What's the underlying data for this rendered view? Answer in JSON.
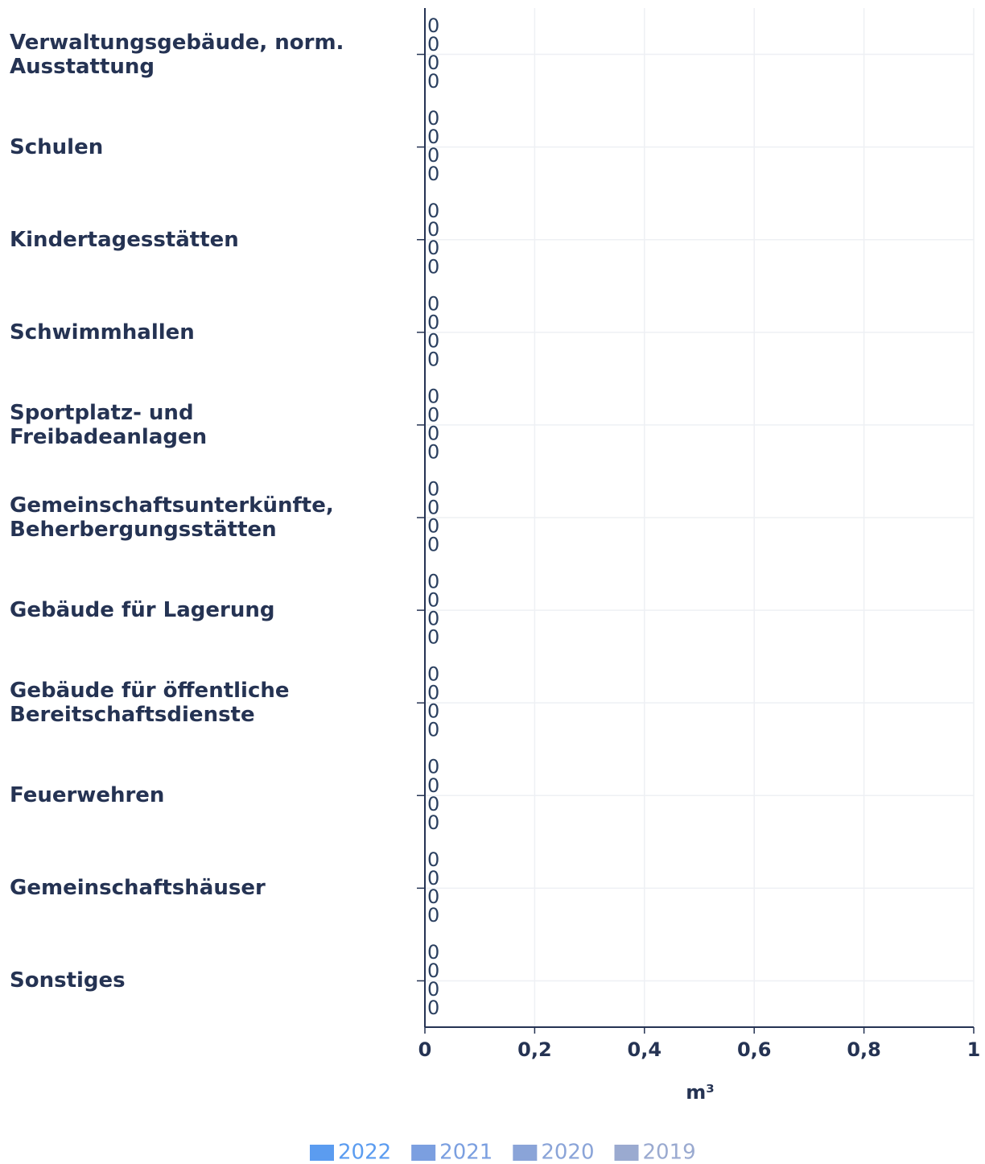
{
  "chart_data": {
    "type": "bar",
    "orientation": "horizontal",
    "x_label": "m³",
    "categories": [
      "Verwaltungsgebäude, norm. Ausstattung",
      "Schulen",
      "Kindertagesstätten",
      "Schwimmhallen",
      "Sportplatz- und Freibadeanlagen",
      "Gemeinschaftsunterkünfte, Beherbergungsstätten",
      "Gebäude für Lagerung",
      "Gebäude für öffentliche Bereitschaftsdienste",
      "Feuerwehren",
      "Gemeinschaftshäuser",
      "Sonstiges"
    ],
    "series": [
      {
        "name": "2022",
        "color": "#5b9cf0",
        "values": [
          0,
          0,
          0,
          0,
          0,
          0,
          0,
          0,
          0,
          0,
          0
        ]
      },
      {
        "name": "2021",
        "color": "#7b9fe0",
        "values": [
          0,
          0,
          0,
          0,
          0,
          0,
          0,
          0,
          0,
          0,
          0
        ]
      },
      {
        "name": "2020",
        "color": "#8aa4d8",
        "values": [
          0,
          0,
          0,
          0,
          0,
          0,
          0,
          0,
          0,
          0,
          0
        ]
      },
      {
        "name": "2019",
        "color": "#9aaad0",
        "values": [
          0,
          0,
          0,
          0,
          0,
          0,
          0,
          0,
          0,
          0,
          0
        ]
      }
    ],
    "xlim": [
      0,
      1
    ],
    "xticks": [
      0,
      {
        "value": 0.2,
        "label": "0,2"
      },
      {
        "value": 0.4,
        "label": "0,4"
      },
      {
        "value": 0.6,
        "label": "0,6"
      },
      {
        "value": 0.8,
        "label": "0,8"
      },
      1
    ],
    "grid": true
  }
}
